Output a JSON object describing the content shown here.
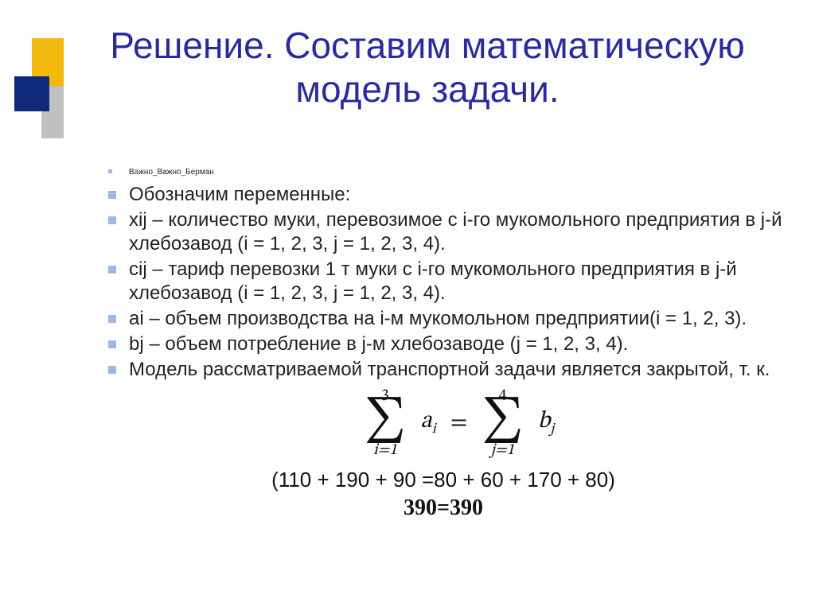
{
  "title": "Решение. Составим математическую модель задачи.",
  "colors": {
    "title": "#2a2aa0",
    "bullet": "#9db8e8",
    "deco_navy": "#0f2a7a",
    "deco_yellow": "#f2b90f",
    "deco_gray": "#c0c0c0",
    "text": "#222222",
    "background": "#ffffff"
  },
  "typography": {
    "title_fontsize": 46,
    "body_fontsize": 24,
    "tiny_fontsize": 10,
    "formula_fontsize": 30,
    "sigma_fontsize": 56,
    "calc_fontsize": 26,
    "result_fontsize": 28,
    "font_family": "Arial"
  },
  "bullets": {
    "b0": "Важно_Важно_Берман",
    "b1": "Обозначим переменные:",
    "b2": "xij – количество муки, перевозимое с i-го мукомольного предприятия в j-й хлебозавод (i = 1, 2, 3, j = 1, 2, 3, 4).",
    "b3": "cij – тариф перевозки 1 т муки с i-го мукомольного предприятия в j-й хлебозавод (i = 1, 2, 3, j = 1, 2, 3, 4).",
    "b4": "ai – объем производства на i-м мукомольном предприятии(i = 1, 2, 3).",
    "b5": "bj – объем потребление в j-м хлебозаводе (j = 1, 2, 3, 4).",
    "b6": "Модель рассматриваемой транспортной задачи является закрытой, т. к."
  },
  "formula": {
    "left": {
      "upper": "3",
      "lower": "i=1",
      "term_base": "a",
      "term_sub": "i"
    },
    "right": {
      "upper": "4",
      "lower": "j=1",
      "term_base": "b",
      "term_sub": "j"
    },
    "operator": "="
  },
  "calc": "(110 + 190 + 90 =80 + 60 + 170 + 80)",
  "result": "390=390"
}
